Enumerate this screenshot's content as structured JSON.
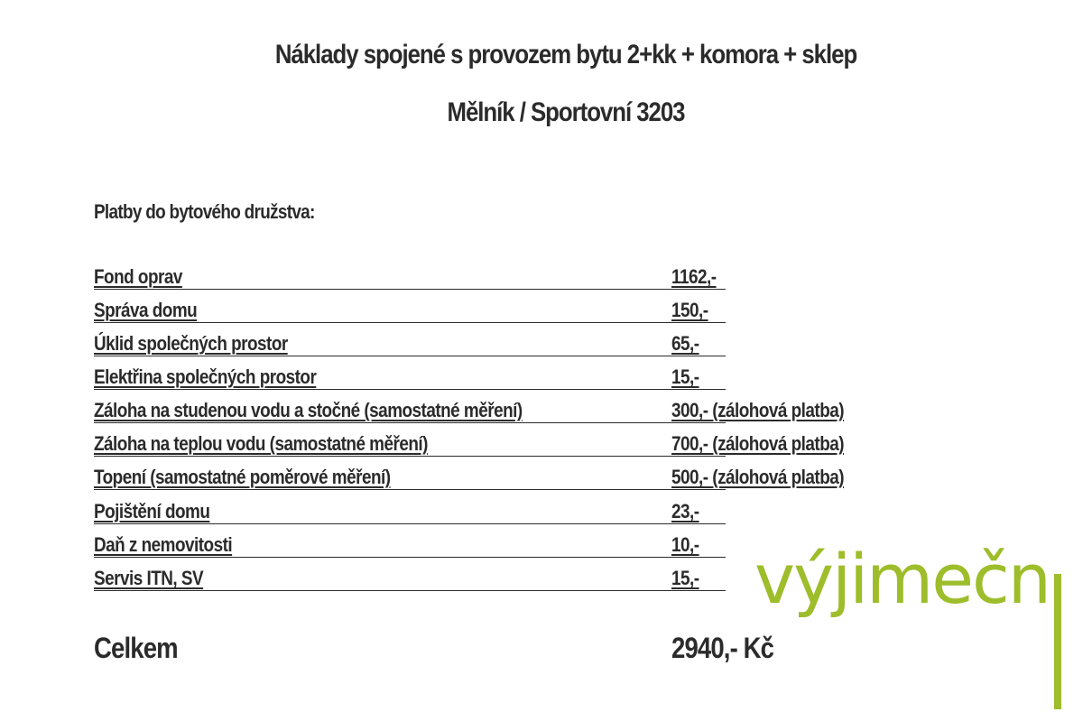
{
  "title_line1": "Náklady spojené s provozem bytu 2+kk + komora + sklep",
  "title_line2": "Mělník / Sportovní 3203",
  "section_heading": "Platby do bytového družstva:",
  "rows": [
    {
      "label": "Fond oprav",
      "value": "1162,-"
    },
    {
      "label": "Správa domu",
      "value": "150,-"
    },
    {
      "label": "Úklid společných prostor",
      "value": "65,-"
    },
    {
      "label": "Elektřina společných prostor",
      "value": "15,-"
    },
    {
      "label": "Záloha na studenou vodu a stočné (samostatné měření)",
      "value": "300,- (zálohová platba)"
    },
    {
      "label": "Záloha na teplou vodu (samostatné měření)",
      "value": "700,- (zálohová platba)"
    },
    {
      "label": "Topení (samostatné poměrové měření)",
      "value": "500,- (zálohová platba)"
    },
    {
      "label": "Pojištění domu",
      "value": "23,-"
    },
    {
      "label": "Daň z nemovitosti",
      "value": "10,-"
    },
    {
      "label": "Servis ITN, SV",
      "value": "15,-"
    }
  ],
  "total": {
    "label": "Celkem",
    "value": "2940,- Kč"
  },
  "logo": {
    "text": "výjimečn",
    "color": "#9ebd2b"
  }
}
